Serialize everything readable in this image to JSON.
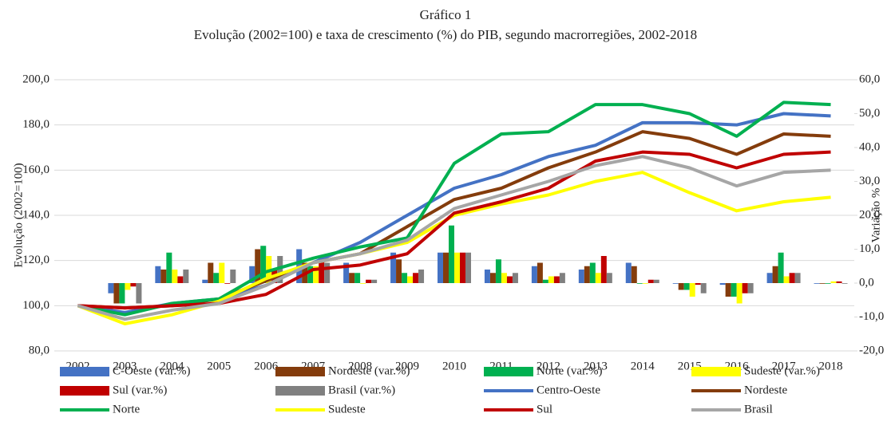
{
  "chart_data": {
    "type": "combo",
    "title": "Gráfico 1",
    "subtitle": "Evolução (2002=100) e taxa de crescimento (%) do PIB, segundo macrorregiões, 2002-2018",
    "y_label": "Evolução (2002=100)",
    "y2_label": "Variação %",
    "categories": [
      "2002",
      "2003",
      "2004",
      "2005",
      "2006",
      "2007",
      "2008",
      "2009",
      "2010",
      "2011",
      "2012",
      "2013",
      "2014",
      "2015",
      "2016",
      "2017",
      "2018"
    ],
    "ylim": [
      80,
      200
    ],
    "yticks": [
      {
        "value": 80,
        "label": "80,0"
      },
      {
        "value": 100,
        "label": "100,0"
      },
      {
        "value": 120,
        "label": "120,0"
      },
      {
        "value": 140,
        "label": "140,0"
      },
      {
        "value": 160,
        "label": "160,0"
      },
      {
        "value": 180,
        "label": "180,0"
      },
      {
        "value": 200,
        "label": "200,0"
      }
    ],
    "y2lim": [
      -20,
      60
    ],
    "y2ticks": [
      {
        "value": -20,
        "label": "-20,0"
      },
      {
        "value": -10,
        "label": "-10,0"
      },
      {
        "value": 0,
        "label": "0,0"
      },
      {
        "value": 10,
        "label": "10,0"
      },
      {
        "value": 20,
        "label": "20,0"
      },
      {
        "value": 30,
        "label": "30,0"
      },
      {
        "value": 40,
        "label": "40,0"
      },
      {
        "value": 50,
        "label": "50,0"
      },
      {
        "value": 60,
        "label": "60,0"
      }
    ],
    "series": [
      {
        "name": "C-Oeste (var.%)",
        "type": "bar",
        "axis": "y2",
        "color": "#4472c4",
        "values": [
          null,
          -3,
          5,
          1,
          5,
          10,
          6,
          9,
          9,
          4,
          5,
          4,
          6,
          0,
          -0.5,
          3,
          0
        ]
      },
      {
        "name": "Nordeste (var.%)",
        "type": "bar",
        "axis": "y2",
        "color": "#843c0c",
        "values": [
          null,
          -6,
          4,
          6,
          10,
          6,
          3,
          7,
          9,
          3,
          6,
          5,
          5,
          -2,
          -4,
          5,
          0
        ]
      },
      {
        "name": "Norte (var.%)",
        "type": "bar",
        "axis": "y2",
        "color": "#00b050",
        "values": [
          null,
          -6,
          9,
          3,
          11,
          5,
          3,
          3,
          17,
          7,
          1,
          6,
          0,
          -2,
          -4,
          9,
          0
        ]
      },
      {
        "name": "Sudeste (var.%)",
        "type": "bar",
        "axis": "y2",
        "color": "#ffff00",
        "values": [
          null,
          -2,
          4,
          6,
          8,
          5,
          0,
          2,
          9,
          3,
          2,
          3,
          0,
          -4,
          -6,
          2,
          0.5
        ]
      },
      {
        "name": "Sul (var.%)",
        "type": "bar",
        "axis": "y2",
        "color": "#c00000",
        "values": [
          null,
          -1,
          2,
          0,
          4,
          8,
          1,
          3,
          9,
          2,
          2,
          8,
          1,
          -0.5,
          -3,
          3,
          0.5
        ]
      },
      {
        "name": "Brasil (var.%)",
        "type": "bar",
        "axis": "y2",
        "color": "#808080",
        "values": [
          null,
          -6,
          4,
          4,
          8,
          6,
          1,
          4,
          9,
          3,
          3,
          3,
          1,
          -3,
          -3,
          3,
          0
        ]
      },
      {
        "name": "Centro-Oeste",
        "type": "line",
        "axis": "y",
        "color": "#4472c4",
        "values": [
          100,
          97,
          101,
          103,
          109,
          119,
          128,
          140,
          152,
          158,
          166,
          171,
          181,
          181,
          180,
          185,
          184
        ]
      },
      {
        "name": "Nordeste",
        "type": "line",
        "axis": "y",
        "color": "#843c0c",
        "values": [
          100,
          99,
          100,
          103,
          111,
          119,
          123,
          135,
          147,
          152,
          161,
          168,
          177,
          174,
          167,
          176,
          175
        ]
      },
      {
        "name": "Norte",
        "type": "line",
        "axis": "y",
        "color": "#00b050",
        "values": [
          100,
          96,
          101,
          103,
          115,
          121,
          126,
          130,
          163,
          176,
          177,
          189,
          189,
          185,
          175,
          190,
          189
        ]
      },
      {
        "name": "Sudeste",
        "type": "line",
        "axis": "y",
        "color": "#ffff00",
        "values": [
          100,
          92,
          96,
          102,
          112,
          119,
          123,
          128,
          140,
          145,
          149,
          155,
          159,
          150,
          142,
          146,
          148
        ]
      },
      {
        "name": "Sul",
        "type": "line",
        "axis": "y",
        "color": "#c00000",
        "values": [
          100,
          99,
          100,
          101,
          105,
          116,
          118,
          123,
          141,
          146,
          152,
          164,
          168,
          167,
          161,
          167,
          168
        ]
      },
      {
        "name": "Brasil",
        "type": "line",
        "axis": "y",
        "color": "#a6a6a6",
        "values": [
          100,
          94,
          98,
          101,
          109,
          119,
          123,
          129,
          143,
          149,
          155,
          162,
          166,
          161,
          153,
          159,
          160
        ]
      }
    ]
  }
}
